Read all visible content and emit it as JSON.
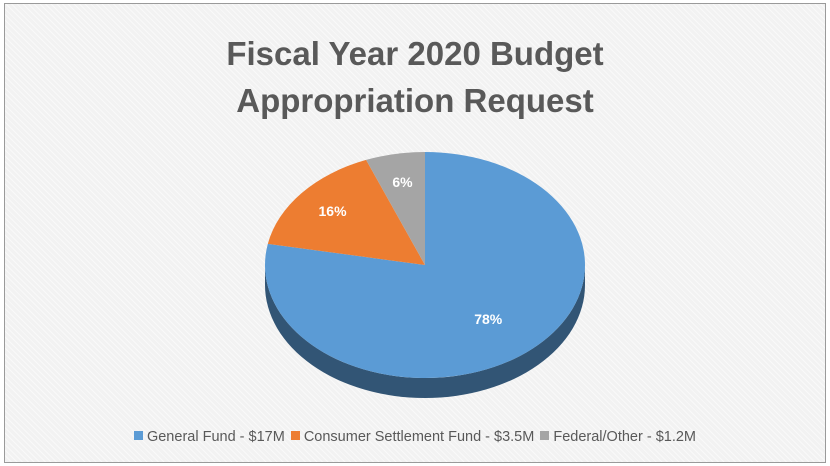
{
  "chart_data": {
    "type": "pie",
    "title": "Fiscal Year 2020 Budget Appropriation Request",
    "title_lines": [
      "Fiscal Year 2020 Budget",
      "Appropriation Request"
    ],
    "slices": [
      {
        "legend": "General Fund - $17M",
        "percent": 78,
        "label": "78%",
        "color": "#5b9bd5"
      },
      {
        "legend": "Consumer Settlement Fund - $3.5M",
        "percent": 16,
        "label": "16%",
        "color": "#ed7d31"
      },
      {
        "legend": "Federal/Other - $1.2M",
        "percent": 6,
        "label": "6%",
        "color": "#a5a5a5"
      }
    ],
    "legend_position": "bottom",
    "style": "3d"
  }
}
